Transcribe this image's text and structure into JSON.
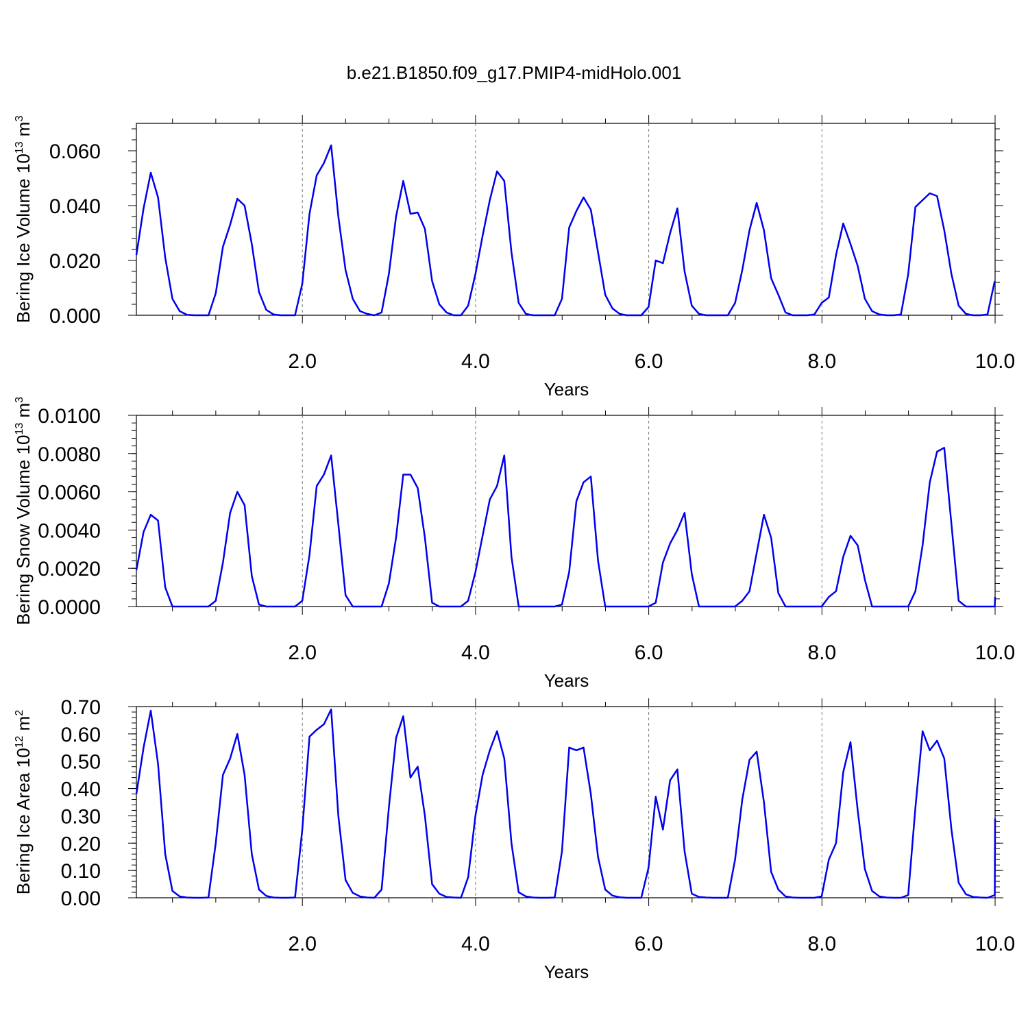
{
  "title": "b.e21.B1850.f09_g17.PMIP4-midHolo.001",
  "chart_data": [
    {
      "type": "line",
      "ylabel": {
        "main": "Bering Ice Volume 10",
        "exp": "13",
        "unit": " m",
        "unit_exp": "3"
      },
      "xlabel": "Years",
      "xlim": [
        0.083,
        10.0
      ],
      "ylim": [
        0.0,
        0.07
      ],
      "x_ticks": [
        "2.0",
        "4.0",
        "6.0",
        "8.0",
        "10.0"
      ],
      "y_ticks": [
        "0.000",
        "0.020",
        "0.040",
        "0.060"
      ],
      "y_tick_values": [
        0.0,
        0.02,
        0.04,
        0.06
      ],
      "color": "#0000ee",
      "x_start": 0.083,
      "x_step": 0.0833,
      "values": [
        0.022,
        0.039,
        0.052,
        0.043,
        0.021,
        0.006,
        0.0015,
        0.0002,
        0.0,
        0.0,
        0.0,
        0.008,
        0.025,
        0.033,
        0.0425,
        0.04,
        0.026,
        0.0085,
        0.002,
        0.0003,
        0.0,
        0.0,
        0.0,
        0.0115,
        0.037,
        0.051,
        0.0555,
        0.062,
        0.036,
        0.0165,
        0.006,
        0.0015,
        0.0005,
        0.0,
        0.001,
        0.015,
        0.036,
        0.049,
        0.037,
        0.0375,
        0.0315,
        0.0125,
        0.004,
        0.001,
        0.0,
        0.0,
        0.0035,
        0.015,
        0.029,
        0.042,
        0.0525,
        0.049,
        0.023,
        0.0045,
        0.0005,
        0.0,
        0.0,
        0.0,
        0.0,
        0.006,
        0.032,
        0.038,
        0.043,
        0.0385,
        0.023,
        0.0075,
        0.0025,
        0.0005,
        0.0,
        0.0,
        0.0,
        0.003,
        0.02,
        0.019,
        0.03,
        0.039,
        0.016,
        0.0035,
        0.0005,
        0.0,
        0.0,
        0.0,
        0.0,
        0.0045,
        0.0165,
        0.031,
        0.041,
        0.031,
        0.0135,
        0.0075,
        0.001,
        0.0,
        0.0,
        0.0,
        0.0003,
        0.0045,
        0.0065,
        0.022,
        0.0335,
        0.026,
        0.018,
        0.006,
        0.0015,
        0.0003,
        0.0,
        0.0,
        0.0003,
        0.015,
        0.0395,
        0.042,
        0.0445,
        0.0435,
        0.031,
        0.015,
        0.0035,
        0.0005,
        0.0,
        0.0,
        0.0003,
        0.0125
      ]
    },
    {
      "type": "line",
      "ylabel": {
        "main": "Bering Snow Volume 10",
        "exp": "13",
        "unit": " m",
        "unit_exp": "3"
      },
      "xlabel": "Years",
      "xlim": [
        0.083,
        10.0
      ],
      "ylim": [
        0.0,
        0.01
      ],
      "x_ticks": [
        "2.0",
        "4.0",
        "6.0",
        "8.0",
        "10.0"
      ],
      "y_ticks": [
        "0.0000",
        "0.0020",
        "0.0040",
        "0.0060",
        "0.0080",
        "0.0100"
      ],
      "y_tick_values": [
        0.0,
        0.002,
        0.004,
        0.006,
        0.008,
        0.01
      ],
      "color": "#0000ee",
      "x_start": 0.083,
      "x_step": 0.0833,
      "values": [
        0.0019,
        0.0039,
        0.0048,
        0.0045,
        0.001,
        0.0,
        0.0,
        0.0,
        0.0,
        0.0,
        0.0,
        0.0003,
        0.0023,
        0.0049,
        0.006,
        0.0053,
        0.0016,
        0.0001,
        0.0,
        0.0,
        0.0,
        0.0,
        0.0,
        0.0003,
        0.0027,
        0.0063,
        0.0069,
        0.0079,
        0.0043,
        0.0006,
        0.0,
        0.0,
        0.0,
        0.0,
        0.0,
        0.0012,
        0.0036,
        0.0069,
        0.0069,
        0.0062,
        0.0036,
        0.0002,
        0.0,
        0.0,
        0.0,
        0.0,
        0.0003,
        0.0018,
        0.0037,
        0.0056,
        0.0063,
        0.0079,
        0.0026,
        0.0,
        0.0,
        0.0,
        0.0,
        0.0,
        0.0,
        0.0001,
        0.0018,
        0.0055,
        0.0065,
        0.0068,
        0.0024,
        0.0,
        0.0,
        0.0,
        0.0,
        0.0,
        0.0,
        0.0,
        0.0002,
        0.0023,
        0.0033,
        0.004,
        0.0049,
        0.0017,
        0.0,
        0.0,
        0.0,
        0.0,
        0.0,
        0.0,
        0.0003,
        0.0008,
        0.0028,
        0.0048,
        0.0036,
        0.0007,
        0.0,
        0.0,
        0.0,
        0.0,
        0.0,
        0.0,
        0.0005,
        0.0008,
        0.0026,
        0.0037,
        0.0032,
        0.0014,
        0.0,
        0.0,
        0.0,
        0.0,
        0.0,
        0.0,
        0.0008,
        0.0032,
        0.0065,
        0.0081,
        0.0083,
        0.0043,
        0.0003,
        0.0,
        0.0,
        0.0,
        0.0,
        0.0,
        0.0005
      ]
    },
    {
      "type": "line",
      "ylabel": {
        "main": "Bering Ice Area 10",
        "exp": "12",
        "unit": " m",
        "unit_exp": "2"
      },
      "xlabel": "Years",
      "xlim": [
        0.083,
        10.0
      ],
      "ylim": [
        0.0,
        0.7
      ],
      "x_ticks": [
        "2.0",
        "4.0",
        "6.0",
        "8.0",
        "10.0"
      ],
      "y_ticks": [
        "0.00",
        "0.10",
        "0.20",
        "0.30",
        "0.40",
        "0.50",
        "0.60",
        "0.70"
      ],
      "y_tick_values": [
        0.0,
        0.1,
        0.2,
        0.3,
        0.4,
        0.5,
        0.6,
        0.7
      ],
      "color": "#0000ee",
      "x_start": 0.083,
      "x_step": 0.0833,
      "values": [
        0.38,
        0.55,
        0.685,
        0.49,
        0.16,
        0.025,
        0.005,
        0.001,
        0.0,
        0.0,
        0.001,
        0.2,
        0.45,
        0.51,
        0.6,
        0.45,
        0.16,
        0.03,
        0.007,
        0.001,
        0.0,
        0.0,
        0.001,
        0.25,
        0.59,
        0.615,
        0.635,
        0.69,
        0.3,
        0.065,
        0.018,
        0.005,
        0.001,
        0.0,
        0.03,
        0.33,
        0.585,
        0.665,
        0.44,
        0.48,
        0.3,
        0.05,
        0.015,
        0.003,
        0.001,
        0.0,
        0.075,
        0.3,
        0.45,
        0.54,
        0.61,
        0.51,
        0.2,
        0.02,
        0.005,
        0.001,
        0.0,
        0.0,
        0.001,
        0.17,
        0.55,
        0.54,
        0.55,
        0.38,
        0.15,
        0.03,
        0.008,
        0.002,
        0.0,
        0.0,
        0.0,
        0.11,
        0.37,
        0.25,
        0.43,
        0.47,
        0.17,
        0.015,
        0.003,
        0.001,
        0.0,
        0.0,
        0.0,
        0.14,
        0.36,
        0.505,
        0.535,
        0.35,
        0.095,
        0.03,
        0.005,
        0.001,
        0.0,
        0.0,
        0.0,
        0.005,
        0.14,
        0.2,
        0.46,
        0.57,
        0.32,
        0.105,
        0.025,
        0.005,
        0.001,
        0.0,
        0.0,
        0.01,
        0.33,
        0.61,
        0.54,
        0.575,
        0.51,
        0.25,
        0.055,
        0.013,
        0.003,
        0.001,
        0.0,
        0.01,
        0.29
      ]
    }
  ]
}
